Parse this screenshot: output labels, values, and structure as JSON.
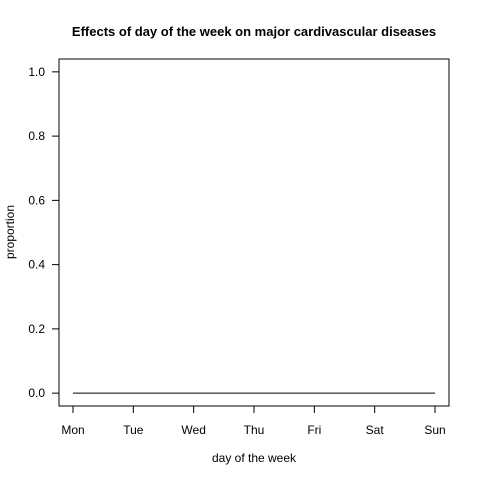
{
  "chart_data": {
    "type": "line",
    "title": "Effects of day of the week on major cardivascular diseases",
    "xlabel": "day of the week",
    "ylabel": "proportion",
    "categories": [
      "Mon",
      "Tue",
      "Wed",
      "Thu",
      "Fri",
      "Sat",
      "Sun"
    ],
    "ylim": [
      -0.04,
      1.04
    ],
    "yticks": [
      0.0,
      0.2,
      0.4,
      0.6,
      0.8,
      1.0
    ],
    "ytick_labels": [
      "0.0",
      "0.2",
      "0.4",
      "0.6",
      "0.8",
      "1.0"
    ],
    "grid": false,
    "series": [
      {
        "values": [
          0,
          0,
          0,
          0,
          0,
          0,
          0
        ],
        "color": "#000000"
      }
    ]
  }
}
